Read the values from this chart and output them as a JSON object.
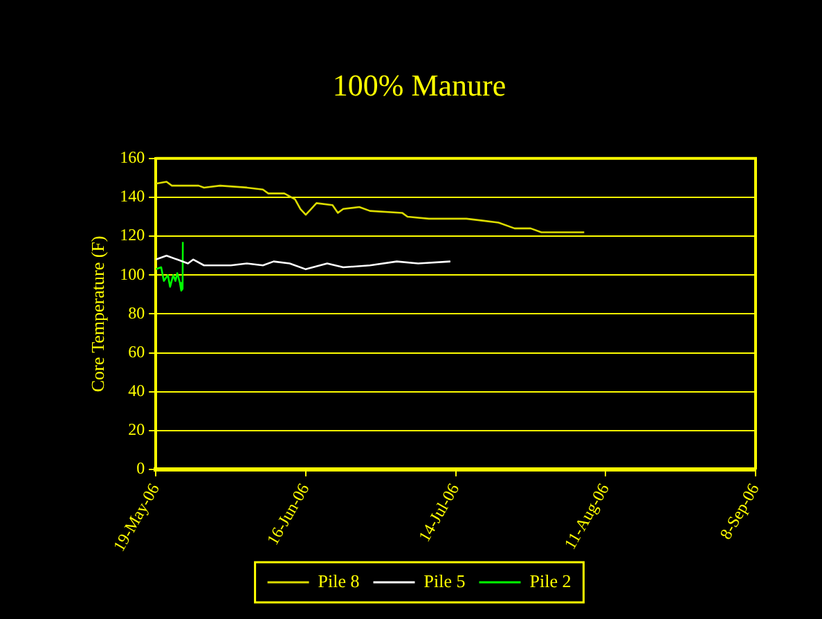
{
  "chart_data": {
    "type": "line",
    "title": "100% Manure",
    "ylabel": "Core Temperature (F)",
    "xlim": [
      "2006-05-19",
      "2006-09-08"
    ],
    "xticks": [
      {
        "value": "2006-05-19",
        "label": "19-May-06"
      },
      {
        "value": "2006-06-16",
        "label": "16-Jun-06"
      },
      {
        "value": "2006-07-14",
        "label": "14-Jul-06"
      },
      {
        "value": "2006-08-11",
        "label": "11-Aug-06"
      },
      {
        "value": "2006-09-08",
        "label": "8-Sep-06"
      }
    ],
    "ylim": [
      0,
      160
    ],
    "yticks": [
      0,
      20,
      40,
      60,
      80,
      100,
      120,
      140,
      160
    ],
    "grid": "y",
    "legend": "bottom",
    "marker": "none",
    "line_style": "solid",
    "series": [
      {
        "name": "Pile 8",
        "color": "#dcdc00",
        "x": [
          "2006-05-19",
          "2006-05-21",
          "2006-05-22",
          "2006-05-27",
          "2006-05-28",
          "2006-05-31",
          "2006-06-05",
          "2006-06-08",
          "2006-06-09",
          "2006-06-12",
          "2006-06-14",
          "2006-06-15",
          "2006-06-16",
          "2006-06-17",
          "2006-06-18",
          "2006-06-21",
          "2006-06-22",
          "2006-06-23",
          "2006-06-26",
          "2006-06-28",
          "2006-07-04",
          "2006-07-05",
          "2006-07-09",
          "2006-07-16",
          "2006-07-19",
          "2006-07-22",
          "2006-07-25",
          "2006-07-28",
          "2006-07-30",
          "2006-08-07"
        ],
        "values": [
          147,
          148,
          146,
          146,
          145,
          146,
          145,
          144,
          142,
          142,
          139,
          134,
          131,
          134,
          137,
          136,
          132,
          134,
          135,
          133,
          132,
          130,
          129,
          129,
          128,
          127,
          124,
          124,
          122,
          122
        ]
      },
      {
        "name": "Pile 5",
        "color": "#ffffff",
        "x": [
          "2006-05-19",
          "2006-05-21",
          "2006-05-23",
          "2006-05-25",
          "2006-05-26",
          "2006-05-28",
          "2006-06-02",
          "2006-06-05",
          "2006-06-08",
          "2006-06-10",
          "2006-06-13",
          "2006-06-16",
          "2006-06-20",
          "2006-06-23",
          "2006-06-28",
          "2006-07-03",
          "2006-07-07",
          "2006-07-13"
        ],
        "values": [
          108,
          110,
          108,
          106,
          108,
          105,
          105,
          106,
          105,
          107,
          106,
          103,
          106,
          104,
          105,
          107,
          106,
          107
        ]
      },
      {
        "name": "Pile 2",
        "color": "#00ff00",
        "x": [
          "2006-05-19T00:00",
          "2006-05-20T00:00",
          "2006-05-20T12:00",
          "2006-05-21T06:00",
          "2006-05-21T16:00",
          "2006-05-22T06:00",
          "2006-05-22T16:00",
          "2006-05-23T00:00",
          "2006-05-23T12:00",
          "2006-05-23T18:00",
          "2006-05-24T00:00",
          "2006-05-24T01:00"
        ],
        "values": [
          103,
          104,
          97,
          100,
          94,
          100,
          97,
          101,
          96,
          92,
          93,
          117
        ]
      }
    ]
  }
}
